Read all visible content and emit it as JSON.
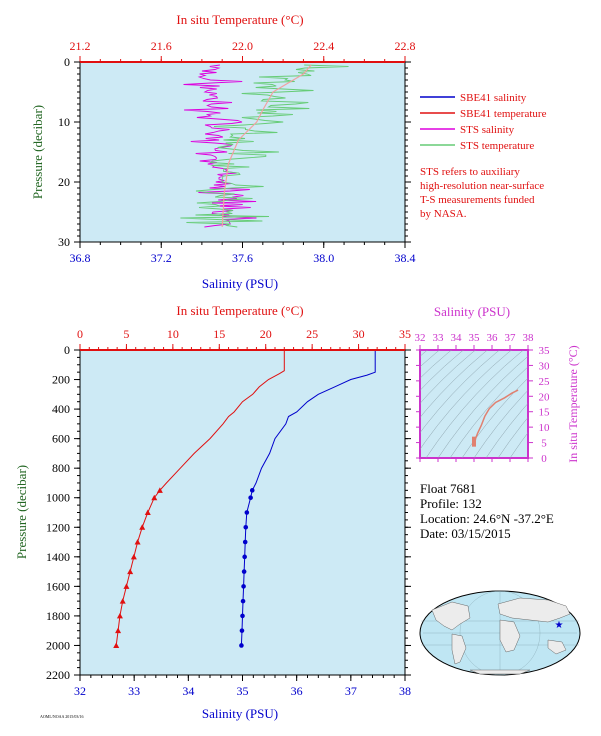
{
  "colors": {
    "plot_bg": "#cdeaf5",
    "salinity": "#0000cc",
    "temperature": "#e01010",
    "sts_salinity": "#dd00dd",
    "sts_temperature": "#66cc77",
    "pressure_label": "#226622",
    "ts_frame": "#cc33cc"
  },
  "legend": {
    "sbe_salinity": "SBE41 salinity",
    "sbe_temperature": "SBE41 temperature",
    "sts_salinity": "STS salinity",
    "sts_temperature": "STS temperature",
    "note_lines": [
      "STS refers to auxiliary",
      "high-resolution near-surface",
      "T-S measurements funded",
      "by NASA."
    ]
  },
  "info": {
    "float": "Float  7681",
    "profile": "Profile:  132",
    "location": "Location:  24.6°N  -37.2°E",
    "date": "Date:  03/15/2015"
  },
  "footer_code": "AOML/NOAA 2015/03/16",
  "chart_data": [
    {
      "type": "line",
      "panel": "near-surface profile",
      "top_axis_label": "In situ Temperature (°C)",
      "top_ticks": [
        "21.2",
        "21.6",
        "22.0",
        "22.4",
        "22.8"
      ],
      "top_range": [
        21.2,
        22.8
      ],
      "bottom_axis_label": "Salinity (PSU)",
      "bottom_ticks": [
        "36.8",
        "37.2",
        "37.6",
        "38.0",
        "38.4"
      ],
      "bottom_range": [
        36.8,
        38.4
      ],
      "ylabel": "Pressure (decibar)",
      "y_ticks": [
        "0",
        "10",
        "20",
        "30"
      ],
      "ylim": [
        0,
        30
      ],
      "y_inverted": true,
      "series": [
        {
          "name": "STS salinity",
          "mean": [
            [
              0,
              37.45
            ],
            [
              5,
              37.46
            ],
            [
              10,
              37.46
            ],
            [
              15,
              37.48
            ],
            [
              20,
              37.5
            ],
            [
              25,
              37.52
            ],
            [
              27.5,
              37.52
            ]
          ],
          "noise": 0.08
        },
        {
          "name": "STS temperature",
          "mean": [
            [
              0,
              22.35
            ],
            [
              2,
              22.3
            ],
            [
              5,
              22.15
            ],
            [
              8,
              22.1
            ],
            [
              10,
              22.07
            ],
            [
              13,
              21.98
            ],
            [
              17,
              21.93
            ],
            [
              22,
              21.91
            ],
            [
              27.5,
              21.9
            ]
          ],
          "noise": 0.12
        }
      ]
    },
    {
      "type": "line",
      "panel": "full-depth profile",
      "top_axis_label": "In situ Temperature (°C)",
      "top_ticks": [
        "0",
        "5",
        "10",
        "15",
        "20",
        "25",
        "30",
        "35"
      ],
      "top_range": [
        0,
        35
      ],
      "bottom_axis_label": "Salinity (PSU)",
      "bottom_ticks": [
        "32",
        "33",
        "34",
        "35",
        "36",
        "37",
        "38"
      ],
      "bottom_range": [
        32,
        38
      ],
      "ylabel": "Pressure (decibar)",
      "y_ticks": [
        "0",
        "200",
        "400",
        "600",
        "800",
        "1000",
        "1200",
        "1400",
        "1600",
        "1800",
        "2000",
        "2200"
      ],
      "ylim": [
        0,
        2200
      ],
      "y_inverted": true,
      "series": [
        {
          "name": "SBE41 salinity",
          "points": [
            [
              0,
              37.45
            ],
            [
              150,
              37.45
            ],
            [
              170,
              37.3
            ],
            [
              200,
              37.0
            ],
            [
              250,
              36.7
            ],
            [
              300,
              36.4
            ],
            [
              350,
              36.2
            ],
            [
              420,
              36.0
            ],
            [
              450,
              35.85
            ],
            [
              500,
              35.8
            ],
            [
              600,
              35.6
            ],
            [
              700,
              35.5
            ],
            [
              800,
              35.35
            ],
            [
              900,
              35.25
            ],
            [
              950,
              35.18
            ],
            [
              1000,
              35.15
            ],
            [
              1100,
              35.08
            ],
            [
              1200,
              35.06
            ],
            [
              1300,
              35.05
            ],
            [
              1400,
              35.04
            ],
            [
              1500,
              35.03
            ],
            [
              1600,
              35.02
            ],
            [
              1700,
              35.01
            ],
            [
              1800,
              35.0
            ],
            [
              1900,
              34.99
            ],
            [
              2000,
              34.98
            ]
          ]
        },
        {
          "name": "SBE41 temperature",
          "points": [
            [
              0,
              22.0
            ],
            [
              140,
              22.0
            ],
            [
              160,
              21.5
            ],
            [
              200,
              20.3
            ],
            [
              250,
              19.3
            ],
            [
              300,
              18.6
            ],
            [
              350,
              17.5
            ],
            [
              420,
              16.6
            ],
            [
              450,
              16.0
            ],
            [
              500,
              15.4
            ],
            [
              600,
              14.0
            ],
            [
              700,
              12.3
            ],
            [
              800,
              10.8
            ],
            [
              900,
              9.3
            ],
            [
              950,
              8.6
            ],
            [
              1000,
              8.0
            ],
            [
              1100,
              7.3
            ],
            [
              1200,
              6.7
            ],
            [
              1300,
              6.2
            ],
            [
              1400,
              5.8
            ],
            [
              1500,
              5.4
            ],
            [
              1600,
              5.0
            ],
            [
              1700,
              4.6
            ],
            [
              1800,
              4.3
            ],
            [
              1900,
              4.1
            ],
            [
              2000,
              3.9
            ]
          ]
        }
      ]
    },
    {
      "type": "scatter",
      "panel": "T-S diagram",
      "top_axis_label": "Salinity (PSU)",
      "x_ticks": [
        "32",
        "33",
        "34",
        "35",
        "36",
        "37",
        "38"
      ],
      "xlim": [
        32,
        38
      ],
      "right_axis_label": "In situ Temperature (°C)",
      "y_ticks": [
        "0",
        "5",
        "10",
        "15",
        "20",
        "25",
        "30",
        "35"
      ],
      "ylim": [
        0,
        35
      ],
      "series": [
        {
          "name": "SBE41",
          "points": [
            [
              35.0,
              4.0
            ],
            [
              35.05,
              5.2
            ],
            [
              35.1,
              6.5
            ],
            [
              35.2,
              8.0
            ],
            [
              35.4,
              10.5
            ],
            [
              35.6,
              13.5
            ],
            [
              35.85,
              16.0
            ],
            [
              36.2,
              18.0
            ],
            [
              36.7,
              19.5
            ],
            [
              37.1,
              21.0
            ],
            [
              37.45,
              22.0
            ]
          ]
        }
      ]
    }
  ]
}
